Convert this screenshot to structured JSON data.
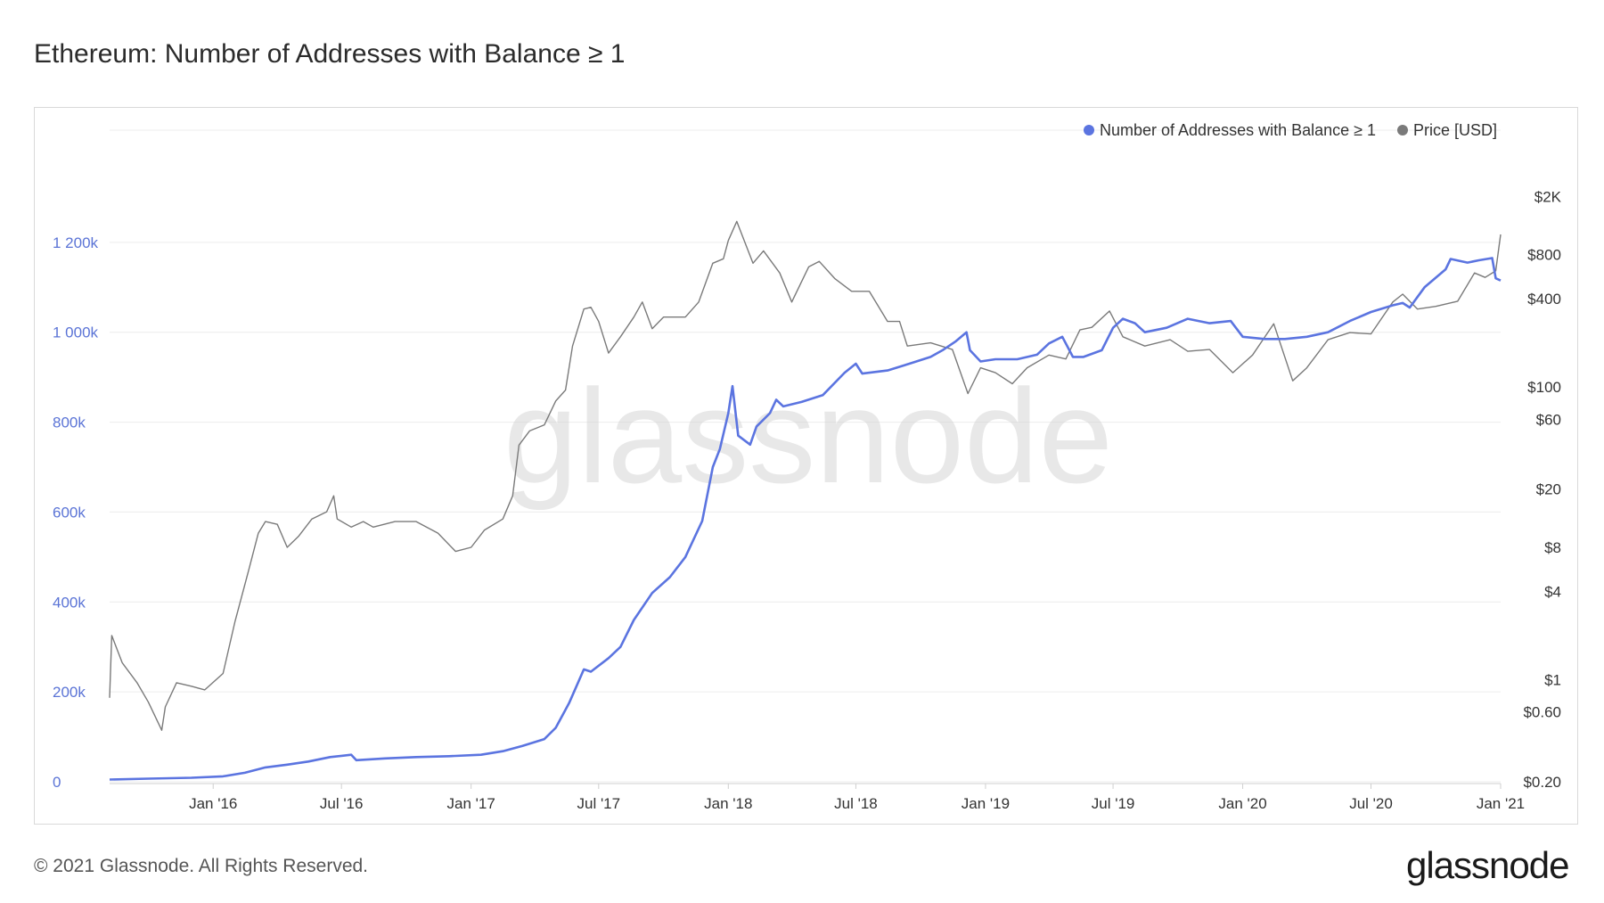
{
  "title": "Ethereum: Number of Addresses with Balance ≥ 1",
  "footer": {
    "copyright": "© 2021 Glassnode. All Rights Reserved.",
    "brand": "glassnode"
  },
  "watermark": "glassnode",
  "colors": {
    "addresses": "#5b74e0",
    "price": "#7a7a7a",
    "grid": "#ececec"
  },
  "chart_data": {
    "type": "line",
    "grid": true,
    "legend_position": "top-right",
    "x_ticks": [
      {
        "label": "Jan '16",
        "date": "2016-01-01"
      },
      {
        "label": "Jul '16",
        "date": "2016-07-01"
      },
      {
        "label": "Jan '17",
        "date": "2017-01-01"
      },
      {
        "label": "Jul '17",
        "date": "2017-07-01"
      },
      {
        "label": "Jan '18",
        "date": "2018-01-01"
      },
      {
        "label": "Jul '18",
        "date": "2018-07-01"
      },
      {
        "label": "Jan '19",
        "date": "2019-01-01"
      },
      {
        "label": "Jul '19",
        "date": "2019-07-01"
      },
      {
        "label": "Jan '20",
        "date": "2020-01-01"
      },
      {
        "label": "Jul '20",
        "date": "2020-07-01"
      },
      {
        "label": "Jan '21",
        "date": "2021-01-01"
      }
    ],
    "x_range": [
      "2015-08-07",
      "2021-01-01"
    ],
    "left_axis": {
      "ticks": [
        {
          "label": "0",
          "value": 0
        },
        {
          "label": "200k",
          "value": 200000
        },
        {
          "label": "400k",
          "value": 400000
        },
        {
          "label": "600k",
          "value": 600000
        },
        {
          "label": "800k",
          "value": 800000
        },
        {
          "label": "1 000k",
          "value": 1000000
        },
        {
          "label": "1 200k",
          "value": 1200000
        }
      ],
      "range": [
        0,
        1400000
      ]
    },
    "right_axis": {
      "scale": "log",
      "ticks": [
        {
          "label": "$0.20",
          "value": 0.2
        },
        {
          "label": "$0.60",
          "value": 0.6
        },
        {
          "label": "$1",
          "value": 1
        },
        {
          "label": "$4",
          "value": 4
        },
        {
          "label": "$8",
          "value": 8
        },
        {
          "label": "$20",
          "value": 20
        },
        {
          "label": "$60",
          "value": 60
        },
        {
          "label": "$100",
          "value": 100
        },
        {
          "label": "$400",
          "value": 400
        },
        {
          "label": "$800",
          "value": 800
        },
        {
          "label": "$2K",
          "value": 2000
        }
      ],
      "range": [
        0.2,
        4000
      ]
    },
    "series": [
      {
        "name": "Number of Addresses with Balance ≥ 1",
        "axis": "left",
        "points": [
          [
            "2015-08-07",
            5000
          ],
          [
            "2015-10-01",
            7000
          ],
          [
            "2015-12-01",
            9000
          ],
          [
            "2016-01-15",
            12000
          ],
          [
            "2016-02-15",
            20000
          ],
          [
            "2016-03-15",
            32000
          ],
          [
            "2016-04-15",
            38000
          ],
          [
            "2016-05-15",
            45000
          ],
          [
            "2016-06-15",
            55000
          ],
          [
            "2016-07-15",
            60000
          ],
          [
            "2016-07-22",
            48000
          ],
          [
            "2016-09-01",
            52000
          ],
          [
            "2016-10-15",
            55000
          ],
          [
            "2016-12-01",
            57000
          ],
          [
            "2017-01-15",
            60000
          ],
          [
            "2017-02-15",
            68000
          ],
          [
            "2017-03-15",
            80000
          ],
          [
            "2017-04-15",
            95000
          ],
          [
            "2017-05-01",
            120000
          ],
          [
            "2017-05-20",
            175000
          ],
          [
            "2017-06-10",
            250000
          ],
          [
            "2017-06-20",
            245000
          ],
          [
            "2017-07-15",
            275000
          ],
          [
            "2017-08-01",
            300000
          ],
          [
            "2017-08-20",
            360000
          ],
          [
            "2017-09-15",
            420000
          ],
          [
            "2017-10-10",
            455000
          ],
          [
            "2017-11-01",
            500000
          ],
          [
            "2017-11-25",
            580000
          ],
          [
            "2017-12-10",
            700000
          ],
          [
            "2017-12-20",
            740000
          ],
          [
            "2018-01-01",
            820000
          ],
          [
            "2018-01-07",
            880000
          ],
          [
            "2018-01-15",
            770000
          ],
          [
            "2018-02-01",
            750000
          ],
          [
            "2018-02-10",
            790000
          ],
          [
            "2018-03-01",
            820000
          ],
          [
            "2018-03-10",
            850000
          ],
          [
            "2018-03-20",
            835000
          ],
          [
            "2018-04-15",
            845000
          ],
          [
            "2018-05-15",
            860000
          ],
          [
            "2018-06-15",
            910000
          ],
          [
            "2018-07-01",
            930000
          ],
          [
            "2018-07-10",
            908000
          ],
          [
            "2018-08-15",
            915000
          ],
          [
            "2018-09-15",
            930000
          ],
          [
            "2018-10-15",
            945000
          ],
          [
            "2018-11-01",
            960000
          ],
          [
            "2018-11-20",
            980000
          ],
          [
            "2018-12-05",
            1000000
          ],
          [
            "2018-12-10",
            960000
          ],
          [
            "2018-12-25",
            935000
          ],
          [
            "2019-01-15",
            940000
          ],
          [
            "2019-02-15",
            940000
          ],
          [
            "2019-03-15",
            950000
          ],
          [
            "2019-04-01",
            975000
          ],
          [
            "2019-04-20",
            990000
          ],
          [
            "2019-05-05",
            945000
          ],
          [
            "2019-05-20",
            945000
          ],
          [
            "2019-06-15",
            960000
          ],
          [
            "2019-07-01",
            1010000
          ],
          [
            "2019-07-15",
            1030000
          ],
          [
            "2019-08-01",
            1020000
          ],
          [
            "2019-08-15",
            1000000
          ],
          [
            "2019-09-15",
            1010000
          ],
          [
            "2019-10-15",
            1030000
          ],
          [
            "2019-11-15",
            1020000
          ],
          [
            "2019-12-15",
            1025000
          ],
          [
            "2020-01-01",
            990000
          ],
          [
            "2020-02-01",
            985000
          ],
          [
            "2020-03-01",
            985000
          ],
          [
            "2020-04-01",
            990000
          ],
          [
            "2020-05-01",
            1000000
          ],
          [
            "2020-06-01",
            1025000
          ],
          [
            "2020-07-01",
            1045000
          ],
          [
            "2020-08-01",
            1060000
          ],
          [
            "2020-08-15",
            1065000
          ],
          [
            "2020-08-25",
            1055000
          ],
          [
            "2020-09-15",
            1100000
          ],
          [
            "2020-10-15",
            1140000
          ],
          [
            "2020-10-22",
            1163000
          ],
          [
            "2020-11-15",
            1155000
          ],
          [
            "2020-12-01",
            1160000
          ],
          [
            "2020-12-20",
            1165000
          ],
          [
            "2020-12-25",
            1120000
          ],
          [
            "2021-01-01",
            1115000
          ]
        ]
      },
      {
        "name": "Price [USD]",
        "axis": "right",
        "points": [
          [
            "2015-08-07",
            0.75
          ],
          [
            "2015-08-10",
            2.0
          ],
          [
            "2015-08-25",
            1.3
          ],
          [
            "2015-09-15",
            0.95
          ],
          [
            "2015-10-01",
            0.7
          ],
          [
            "2015-10-20",
            0.45
          ],
          [
            "2015-10-25",
            0.65
          ],
          [
            "2015-11-10",
            0.95
          ],
          [
            "2015-12-01",
            0.9
          ],
          [
            "2015-12-20",
            0.85
          ],
          [
            "2016-01-15",
            1.1
          ],
          [
            "2016-02-01",
            2.5
          ],
          [
            "2016-02-20",
            5.5
          ],
          [
            "2016-03-05",
            10
          ],
          [
            "2016-03-15",
            12
          ],
          [
            "2016-04-01",
            11.5
          ],
          [
            "2016-04-15",
            8
          ],
          [
            "2016-05-01",
            9.5
          ],
          [
            "2016-05-20",
            12.5
          ],
          [
            "2016-06-10",
            14
          ],
          [
            "2016-06-20",
            18
          ],
          [
            "2016-06-25",
            12.5
          ],
          [
            "2016-07-15",
            11
          ],
          [
            "2016-08-01",
            12
          ],
          [
            "2016-08-15",
            11
          ],
          [
            "2016-09-15",
            12
          ],
          [
            "2016-10-15",
            12
          ],
          [
            "2016-11-15",
            10
          ],
          [
            "2016-12-10",
            7.5
          ],
          [
            "2017-01-01",
            8
          ],
          [
            "2017-01-20",
            10.5
          ],
          [
            "2017-02-15",
            12.5
          ],
          [
            "2017-03-01",
            18
          ],
          [
            "2017-03-10",
            40
          ],
          [
            "2017-03-25",
            50
          ],
          [
            "2017-04-15",
            55
          ],
          [
            "2017-05-01",
            80
          ],
          [
            "2017-05-15",
            95
          ],
          [
            "2017-05-25",
            190
          ],
          [
            "2017-06-10",
            340
          ],
          [
            "2017-06-20",
            350
          ],
          [
            "2017-07-01",
            280
          ],
          [
            "2017-07-15",
            170
          ],
          [
            "2017-08-01",
            220
          ],
          [
            "2017-08-20",
            300
          ],
          [
            "2017-09-01",
            380
          ],
          [
            "2017-09-15",
            250
          ],
          [
            "2017-10-01",
            300
          ],
          [
            "2017-11-01",
            300
          ],
          [
            "2017-11-20",
            380
          ],
          [
            "2017-12-10",
            700
          ],
          [
            "2017-12-25",
            750
          ],
          [
            "2018-01-01",
            1000
          ],
          [
            "2018-01-13",
            1350
          ],
          [
            "2018-02-05",
            700
          ],
          [
            "2018-02-20",
            850
          ],
          [
            "2018-03-15",
            600
          ],
          [
            "2018-04-01",
            380
          ],
          [
            "2018-04-25",
            660
          ],
          [
            "2018-05-10",
            720
          ],
          [
            "2018-06-01",
            550
          ],
          [
            "2018-06-25",
            450
          ],
          [
            "2018-07-20",
            450
          ],
          [
            "2018-08-15",
            280
          ],
          [
            "2018-09-01",
            280
          ],
          [
            "2018-09-12",
            190
          ],
          [
            "2018-10-15",
            200
          ],
          [
            "2018-11-15",
            180
          ],
          [
            "2018-12-07",
            90
          ],
          [
            "2018-12-25",
            135
          ],
          [
            "2019-01-15",
            125
          ],
          [
            "2019-02-08",
            105
          ],
          [
            "2019-03-01",
            135
          ],
          [
            "2019-04-01",
            165
          ],
          [
            "2019-04-25",
            155
          ],
          [
            "2019-05-15",
            245
          ],
          [
            "2019-06-01",
            255
          ],
          [
            "2019-06-26",
            330
          ],
          [
            "2019-07-15",
            220
          ],
          [
            "2019-08-15",
            190
          ],
          [
            "2019-09-20",
            210
          ],
          [
            "2019-10-15",
            175
          ],
          [
            "2019-11-15",
            180
          ],
          [
            "2019-12-18",
            125
          ],
          [
            "2020-01-15",
            165
          ],
          [
            "2020-02-14",
            270
          ],
          [
            "2020-03-12",
            110
          ],
          [
            "2020-04-01",
            135
          ],
          [
            "2020-05-01",
            210
          ],
          [
            "2020-06-01",
            235
          ],
          [
            "2020-07-01",
            230
          ],
          [
            "2020-08-01",
            380
          ],
          [
            "2020-08-15",
            430
          ],
          [
            "2020-09-05",
            340
          ],
          [
            "2020-10-01",
            355
          ],
          [
            "2020-11-01",
            385
          ],
          [
            "2020-11-25",
            600
          ],
          [
            "2020-12-10",
            560
          ],
          [
            "2020-12-25",
            620
          ],
          [
            "2021-01-01",
            1100
          ]
        ]
      }
    ]
  }
}
